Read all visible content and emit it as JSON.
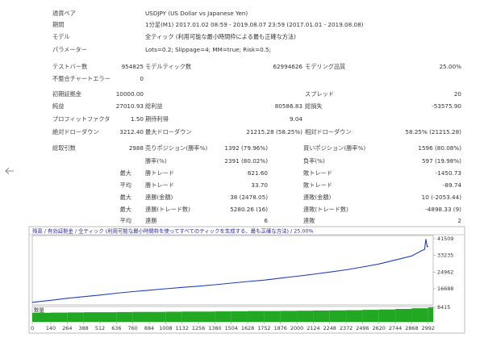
{
  "info": [
    {
      "label": "通貨ペア",
      "value": "USDJPY (US Dollar vs Japanese Yen)"
    },
    {
      "label": "期間",
      "value": "1分足(M1) 2017.01.02 08:59 - 2019.08.07 23:59 (2017.01.01 - 2019.08.08)"
    },
    {
      "label": "モデル",
      "value": "全ティック (利用可能な最小時間枠による最も正確な方法)"
    },
    {
      "label": "パラメーター",
      "value": "Lots=0.2; Slippage=4; MM=true; Risk=0.5;"
    }
  ],
  "stats": [
    {
      "cells": [
        {
          "label": "テストバー数",
          "value": "954825"
        },
        {
          "label": "モデルティック数",
          "value": "62994626"
        },
        {
          "label": "モデリング品質",
          "value": "25.00%"
        }
      ]
    },
    {
      "cells": [
        {
          "label": "不整合チャートエラー",
          "value": "0"
        }
      ]
    },
    {
      "cells": [
        {
          "label": "初期証拠金",
          "value": "10000.00"
        },
        null,
        {
          "label": "スプレッド",
          "value": "20"
        }
      ]
    },
    {
      "cells": [
        {
          "label": "純益",
          "value": "27010.93"
        },
        {
          "label": "総利益",
          "value": "80586.83"
        },
        {
          "label": "総損失",
          "value": "-53575.90"
        }
      ]
    },
    {
      "cells": [
        {
          "label": "プロフィットファクタ",
          "value": "1.50"
        },
        {
          "label": "期待利得",
          "value": "9.04"
        }
      ]
    },
    {
      "cells": [
        {
          "label": "絶対ドローダウン",
          "value": "3212.40"
        },
        {
          "label": "最大ドローダウン",
          "value": "21215.28 (58.25%)"
        },
        {
          "label": "相対ドローダウン",
          "value": "58.25% (21215.28)"
        }
      ]
    }
  ],
  "trades": [
    {
      "cells": [
        {
          "label": "総取引数",
          "value": "2988"
        },
        {
          "label": "売りポジション(勝率%)",
          "value": "1392 (79.96%)"
        },
        {
          "label": "買いポジション(勝率%)",
          "value": "1596 (80.08%)"
        }
      ]
    },
    {
      "cells": [
        null,
        {
          "label": "勝率(%)",
          "value": "2391 (80.02%)"
        },
        {
          "label": "負率(%)",
          "value": "597 (19.98%)"
        }
      ]
    },
    {
      "prefix": "最大",
      "cells": [
        null,
        {
          "label": "勝トレード",
          "value": "621.60"
        },
        {
          "label": "敗トレード",
          "value": "-1450.73"
        }
      ]
    },
    {
      "prefix": "平均",
      "cells": [
        null,
        {
          "label": "勝トレード",
          "value": "33.70"
        },
        {
          "label": "敗トレード",
          "value": "-89.74"
        }
      ]
    },
    {
      "prefix": "最大",
      "cells": [
        null,
        {
          "label": "連勝(金額)",
          "value": "38 (2478.05)"
        },
        {
          "label": "連敗(金額)",
          "value": "10 (-2053.44)"
        }
      ]
    },
    {
      "prefix": "最大",
      "cells": [
        null,
        {
          "label": "連勝(トレード数)",
          "value": "5280.26 (16)"
        },
        {
          "label": "連敗(トレード数)",
          "value": "-4898.33 (9)"
        }
      ]
    },
    {
      "prefix": "平均",
      "cells": [
        null,
        {
          "label": "連勝",
          "value": "6"
        },
        {
          "label": "連敗",
          "value": "2"
        }
      ]
    }
  ],
  "chart_data": {
    "type": "line",
    "title": "残高 / 有効証拠金 / 全ティック (利用可能な最小時間枠を使ってすべてのティックを生成する、最も正確な方法) / 25.00%",
    "xlim": [
      0,
      3030
    ],
    "xticks": [
      0,
      140,
      264,
      388,
      512,
      636,
      760,
      884,
      1008,
      1132,
      1256,
      1380,
      1504,
      1628,
      1752,
      1876,
      2000,
      2124,
      2248,
      2372,
      2496,
      2620,
      2744,
      2868,
      2992
    ],
    "ylim": [
      8700,
      43100
    ],
    "yticks": [
      16688,
      24962,
      33235,
      41509
    ],
    "series": [
      {
        "color": "#1f3fbf",
        "x": [
          0,
          140,
          264,
          388,
          512,
          636,
          760,
          884,
          1008,
          1132,
          1256,
          1380,
          1504,
          1628,
          1752,
          1876,
          2000,
          2124,
          2248,
          2372,
          2496,
          2620,
          2744,
          2868,
          2940,
          2965,
          2975,
          2985,
          2992
        ],
        "values": [
          10000,
          11000,
          12000,
          12800,
          13600,
          14500,
          15300,
          16000,
          16700,
          17400,
          18000,
          18700,
          19500,
          20300,
          21000,
          22000,
          22900,
          23900,
          25000,
          26100,
          27500,
          29000,
          31000,
          33000,
          35500,
          36200,
          41300,
          37500,
          37800
        ]
      }
    ],
    "volume": {
      "label": "数量",
      "color": "#22a822",
      "ylim": [
        0,
        8800
      ],
      "yticks": [
        8415
      ],
      "x": [
        0,
        140,
        264,
        388,
        512,
        636,
        760,
        884,
        1008,
        1132,
        1256,
        1380,
        1504,
        1628,
        1752,
        1876,
        2000,
        2124,
        2248,
        2372,
        2496,
        2620,
        2744,
        2868,
        2992
      ],
      "values": [
        5200,
        5300,
        5400,
        5500,
        5500,
        5600,
        5700,
        5700,
        5800,
        5900,
        5900,
        6000,
        6100,
        6200,
        6200,
        6300,
        6400,
        6500,
        6600,
        6700,
        6900,
        7100,
        7400,
        7800,
        8300
      ]
    }
  }
}
